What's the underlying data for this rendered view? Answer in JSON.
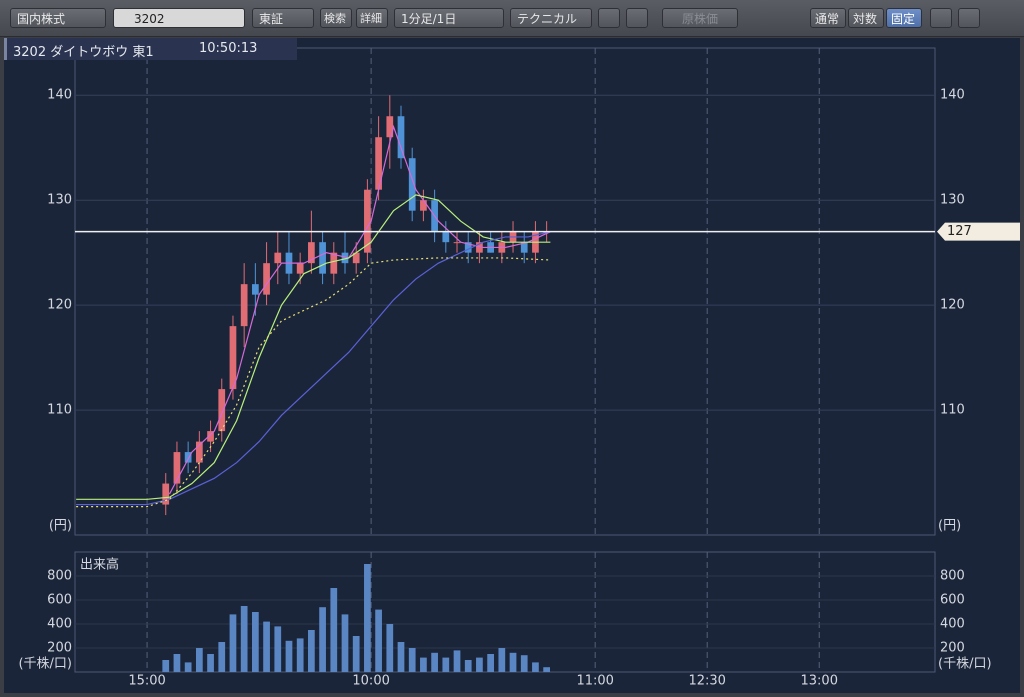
{
  "toolbar": {
    "market": "国内株式",
    "search": "3202",
    "exchange": "東証",
    "search_button": "検索",
    "detail_button": "詳細",
    "interval": "1分足/1日",
    "technical": "テクニカル",
    "original_price": "原株価",
    "mode_normal": "通常",
    "mode_log": "対数",
    "mode_fixed": "固定"
  },
  "header": {
    "symbol": "3202 ダイトウボウ 東1",
    "time": "10:50:13"
  },
  "chart_data": [
    {
      "type": "candlestick",
      "y_unit": "(円)",
      "x": [
        5,
        8,
        11,
        14,
        17,
        20,
        23,
        26,
        29,
        32,
        35,
        38,
        41,
        44,
        47,
        50,
        53,
        56,
        59,
        62,
        65,
        68,
        71,
        74,
        77,
        80,
        83,
        86,
        89,
        92,
        95,
        98,
        101,
        104,
        107
      ],
      "open": [
        101,
        103,
        106,
        105,
        107,
        108,
        112,
        118,
        122,
        121,
        124,
        125,
        123,
        124,
        126,
        123,
        125,
        124,
        125,
        131,
        136,
        138,
        134,
        129,
        130,
        127,
        126,
        126,
        125,
        126,
        125,
        126,
        126,
        125,
        127
      ],
      "high": [
        104,
        107,
        107,
        108,
        109,
        113,
        119,
        124,
        124,
        126,
        127,
        127,
        125,
        129,
        127,
        126,
        127,
        126,
        132,
        138,
        140,
        139,
        135,
        131,
        131,
        128,
        127,
        127,
        127,
        127,
        127,
        128,
        127,
        128,
        128
      ],
      "low": [
        100,
        102,
        104,
        104,
        106,
        107,
        111,
        116,
        119,
        120,
        122,
        122,
        122,
        123,
        122,
        122,
        123,
        123,
        124,
        130,
        133,
        133,
        128,
        128,
        126,
        125,
        125,
        124,
        124,
        125,
        124,
        125,
        124,
        124,
        126
      ],
      "close": [
        103,
        106,
        105,
        107,
        108,
        112,
        118,
        122,
        121,
        124,
        125,
        123,
        124,
        126,
        123,
        125,
        124,
        125,
        131,
        136,
        138,
        134,
        129,
        130,
        127,
        126,
        126,
        125,
        126,
        125,
        126,
        127,
        125,
        127,
        127
      ],
      "up_color": "#e06c74",
      "down_color": "#4f93d6",
      "line_x": [
        -19,
        0,
        6,
        12,
        18,
        24,
        30,
        36,
        42,
        48,
        54,
        60,
        66,
        72,
        78,
        84,
        90,
        96,
        102,
        108
      ],
      "lines": [
        {
          "color": "#d46ad8",
          "dash": false,
          "values": [
            null,
            null,
            102,
            106,
            108,
            113,
            121,
            124,
            124,
            125,
            124.5,
            128,
            137,
            131,
            128,
            126,
            125.5,
            125.5,
            126,
            127
          ]
        },
        {
          "color": "#b8f07a",
          "dash": false,
          "values": [
            101.5,
            101.5,
            101.7,
            103,
            105,
            109,
            115,
            120,
            123,
            124,
            124.5,
            126,
            129,
            130.5,
            130,
            128,
            126.5,
            126,
            126,
            126
          ]
        },
        {
          "color": "#5a62d8",
          "dash": false,
          "values": [
            101,
            101,
            101.5,
            102.5,
            103.5,
            105,
            107,
            109.5,
            111.5,
            113.5,
            115.5,
            118,
            120.5,
            122.5,
            124,
            125,
            126,
            126.5,
            126.5,
            127
          ]
        },
        {
          "color": "#e8e070",
          "dash": true,
          "values": [
            100.8,
            100.8,
            101.5,
            104,
            107,
            110.5,
            116,
            118.5,
            119.5,
            120.5,
            122,
            124,
            124.3,
            124.4,
            124.5,
            124.5,
            124.5,
            124.5,
            124.4,
            124.3
          ]
        }
      ],
      "last_price": 127,
      "xlim": [
        -19.3,
        211
      ],
      "ylim": [
        98.1,
        144.5
      ],
      "yticks": [
        110,
        120,
        130,
        140
      ],
      "xticks": [
        {
          "value": 0,
          "label": "15:00"
        },
        {
          "value": 60,
          "label": "10:00"
        },
        {
          "value": 120,
          "label": "11:00"
        },
        {
          "value": 150,
          "label": "12:30"
        },
        {
          "value": 180,
          "label": "13:00"
        }
      ]
    },
    {
      "type": "bar",
      "title": "出来高",
      "y_unit": "(千株/口)",
      "color": "#5b86c4",
      "values": [
        100,
        150,
        80,
        200,
        150,
        250,
        480,
        550,
        500,
        420,
        380,
        260,
        280,
        350,
        540,
        700,
        480,
        300,
        900,
        520,
        400,
        250,
        200,
        120,
        160,
        120,
        180,
        100,
        120,
        150,
        200,
        160,
        140,
        80,
        40
      ],
      "ylim": [
        0,
        1000
      ],
      "yticks": [
        200,
        400,
        600,
        800
      ]
    }
  ]
}
